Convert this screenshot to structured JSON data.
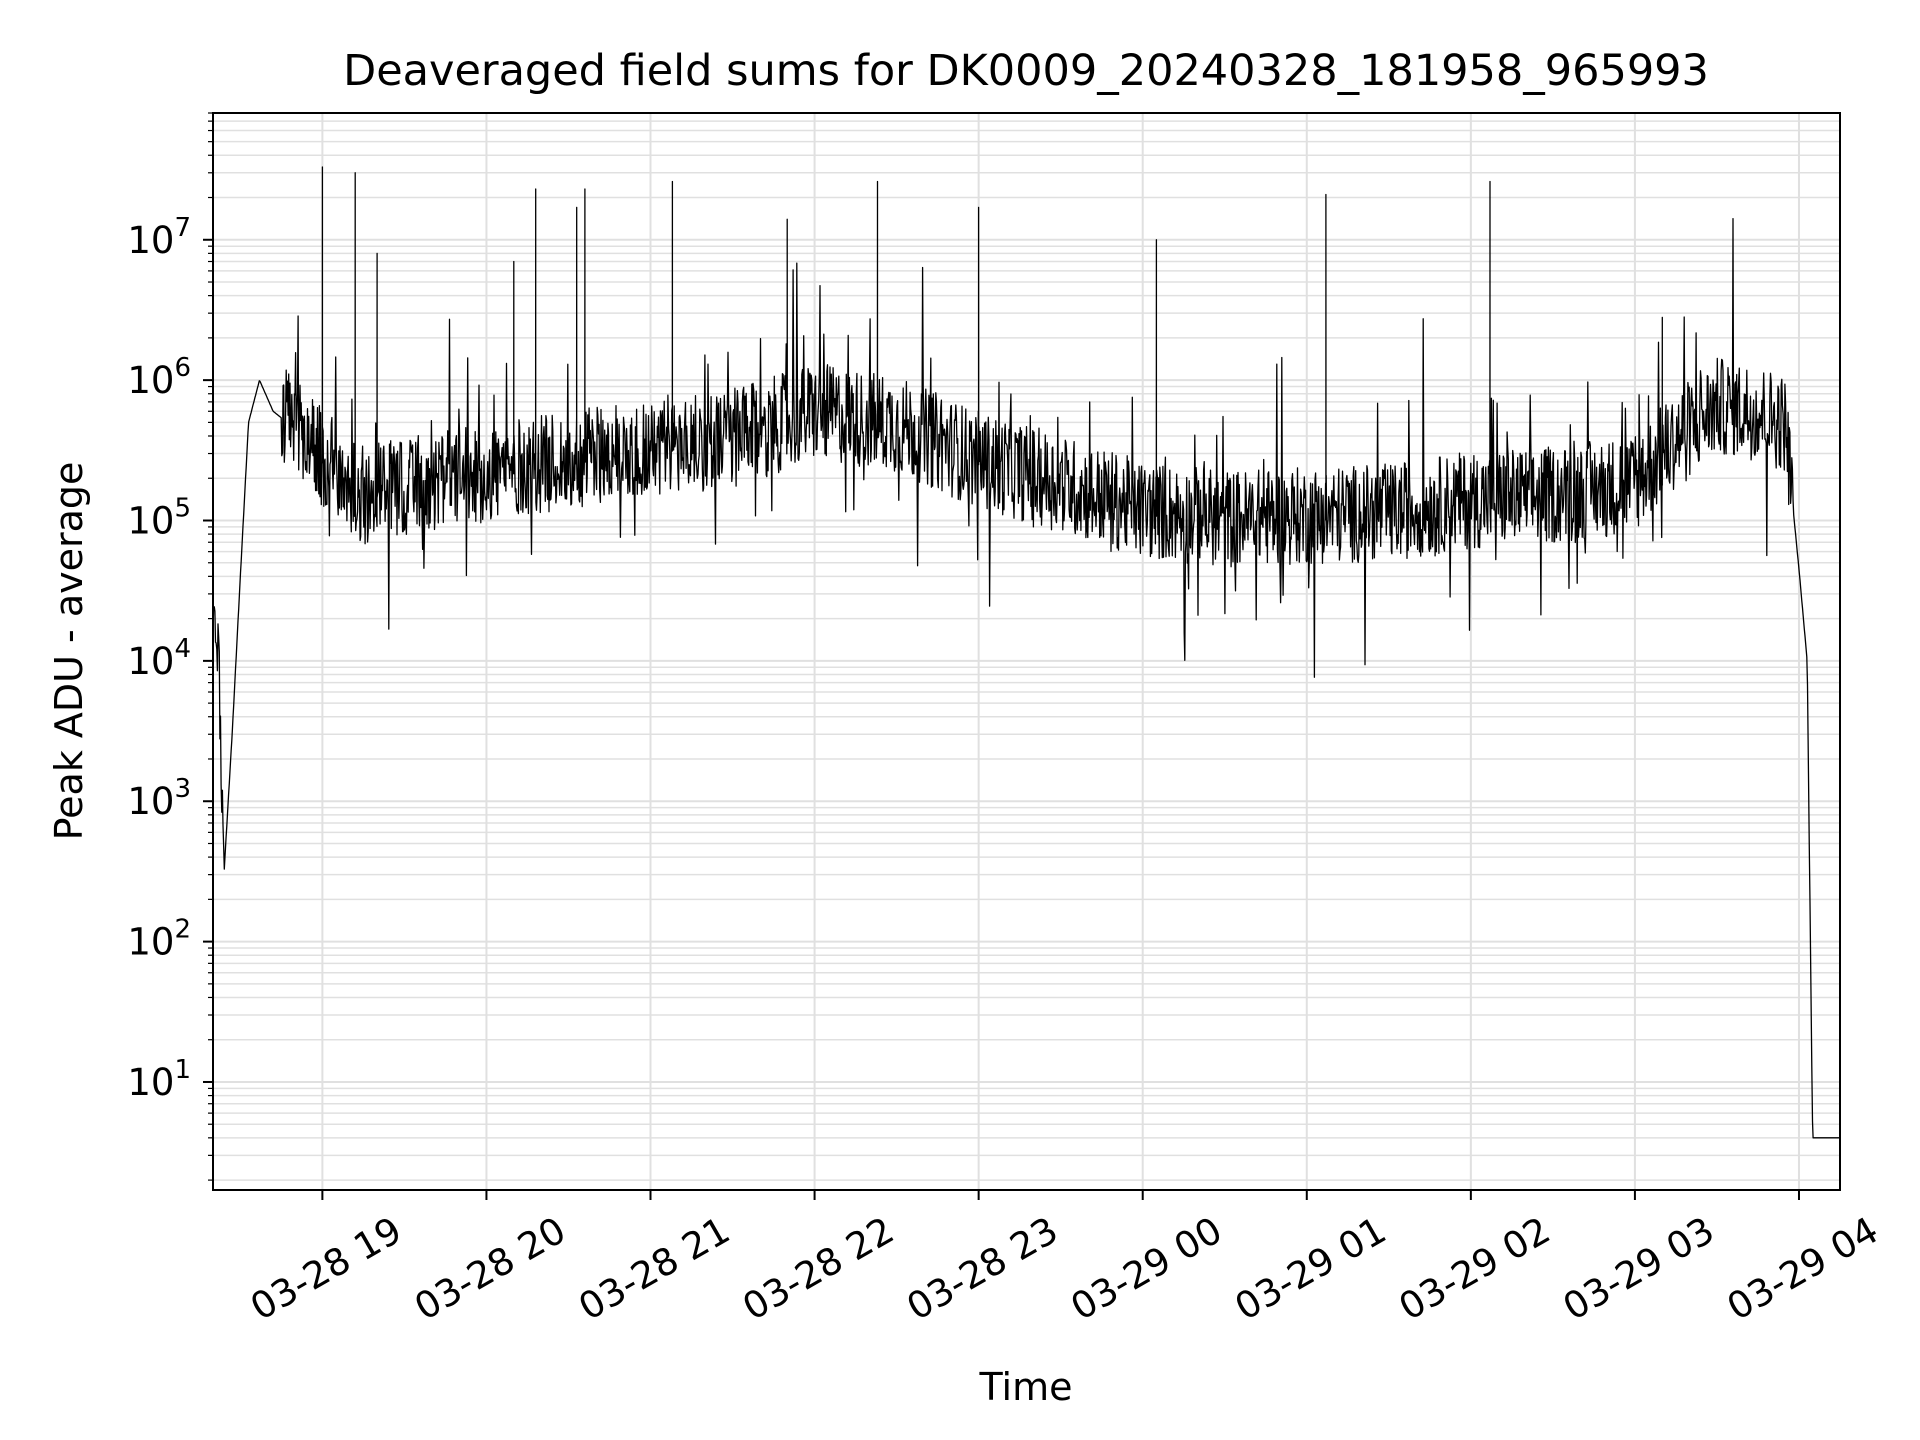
{
  "chart_data": {
    "type": "line",
    "title": "Deaveraged field sums for DK0009_20240328_181958_965993",
    "xlabel": "Time",
    "ylabel": "Peak ADU - average",
    "yscale": "log",
    "ylim": [
      1.7,
      80000000
    ],
    "xlim": [
      "2024-03-28 18:20",
      "2024-03-29 04:15"
    ],
    "grid": true,
    "line_color": "#000000",
    "grid_color": "#e0e0e0",
    "x_ticks": [
      {
        "label": "03-28 19",
        "time": "2024-03-28 19:00"
      },
      {
        "label": "03-28 20",
        "time": "2024-03-28 20:00"
      },
      {
        "label": "03-28 21",
        "time": "2024-03-28 21:00"
      },
      {
        "label": "03-28 22",
        "time": "2024-03-28 22:00"
      },
      {
        "label": "03-28 23",
        "time": "2024-03-28 23:00"
      },
      {
        "label": "03-29 00",
        "time": "2024-03-29 00:00"
      },
      {
        "label": "03-29 01",
        "time": "2024-03-29 01:00"
      },
      {
        "label": "03-29 02",
        "time": "2024-03-29 02:00"
      },
      {
        "label": "03-29 03",
        "time": "2024-03-29 03:00"
      },
      {
        "label": "03-29 04",
        "time": "2024-03-29 04:00"
      }
    ],
    "y_ticks": [
      {
        "base": "10",
        "exp": "1",
        "value": 10
      },
      {
        "base": "10",
        "exp": "2",
        "value": 100
      },
      {
        "base": "10",
        "exp": "3",
        "value": 1000
      },
      {
        "base": "10",
        "exp": "4",
        "value": 10000
      },
      {
        "base": "10",
        "exp": "5",
        "value": 100000
      },
      {
        "base": "10",
        "exp": "6",
        "value": 1000000
      },
      {
        "base": "10",
        "exp": "7",
        "value": 10000000
      }
    ],
    "baseline": [
      [
        "2024-03-28 18:20",
        15000
      ],
      [
        "2024-03-28 18:22",
        11000
      ],
      [
        "2024-03-28 18:24",
        300
      ],
      [
        "2024-03-28 18:27",
        3000
      ],
      [
        "2024-03-28 18:30",
        40000
      ],
      [
        "2024-03-28 18:33",
        500000
      ],
      [
        "2024-03-28 18:37",
        1000000
      ],
      [
        "2024-03-28 18:42",
        600000
      ],
      [
        "2024-03-28 18:50",
        450000
      ],
      [
        "2024-03-28 19:00",
        260000
      ],
      [
        "2024-03-28 19:15",
        140000
      ],
      [
        "2024-03-28 19:30",
        160000
      ],
      [
        "2024-03-28 20:00",
        200000
      ],
      [
        "2024-03-28 20:30",
        250000
      ],
      [
        "2024-03-28 21:00",
        300000
      ],
      [
        "2024-03-28 21:30",
        350000
      ],
      [
        "2024-03-28 22:00",
        550000
      ],
      [
        "2024-03-28 22:30",
        450000
      ],
      [
        "2024-03-28 23:00",
        250000
      ],
      [
        "2024-03-28 23:30",
        170000
      ],
      [
        "2024-03-29 00:00",
        110000
      ],
      [
        "2024-03-29 00:30",
        95000
      ],
      [
        "2024-03-29 01:00",
        100000
      ],
      [
        "2024-03-29 01:30",
        105000
      ],
      [
        "2024-03-29 02:00",
        130000
      ],
      [
        "2024-03-29 02:30",
        140000
      ],
      [
        "2024-03-29 03:00",
        170000
      ],
      [
        "2024-03-29 03:15",
        350000
      ],
      [
        "2024-03-29 03:30",
        600000
      ],
      [
        "2024-03-29 03:45",
        550000
      ],
      [
        "2024-03-29 03:55",
        450000
      ],
      [
        "2024-03-29 04:00",
        45000
      ],
      [
        "2024-03-29 04:03",
        10000
      ],
      [
        "2024-03-29 04:05",
        4
      ],
      [
        "2024-03-29 04:15",
        4
      ]
    ],
    "spikes": [
      [
        "2024-03-28 19:00",
        33000000
      ],
      [
        "2024-03-28 19:12",
        30000000
      ],
      [
        "2024-03-28 19:20",
        8000000
      ],
      [
        "2024-03-28 20:10",
        7000000
      ],
      [
        "2024-03-28 20:18",
        23000000
      ],
      [
        "2024-03-28 20:33",
        17000000
      ],
      [
        "2024-03-28 20:36",
        23000000
      ],
      [
        "2024-03-28 21:08",
        26000000
      ],
      [
        "2024-03-28 21:50",
        14000000
      ],
      [
        "2024-03-28 22:23",
        26000000
      ],
      [
        "2024-03-28 23:00",
        17000000
      ],
      [
        "2024-03-29 00:05",
        10000000
      ],
      [
        "2024-03-29 01:07",
        21000000
      ],
      [
        "2024-03-29 02:07",
        26000000
      ],
      [
        "2024-03-29 03:10",
        2800000
      ]
    ]
  }
}
